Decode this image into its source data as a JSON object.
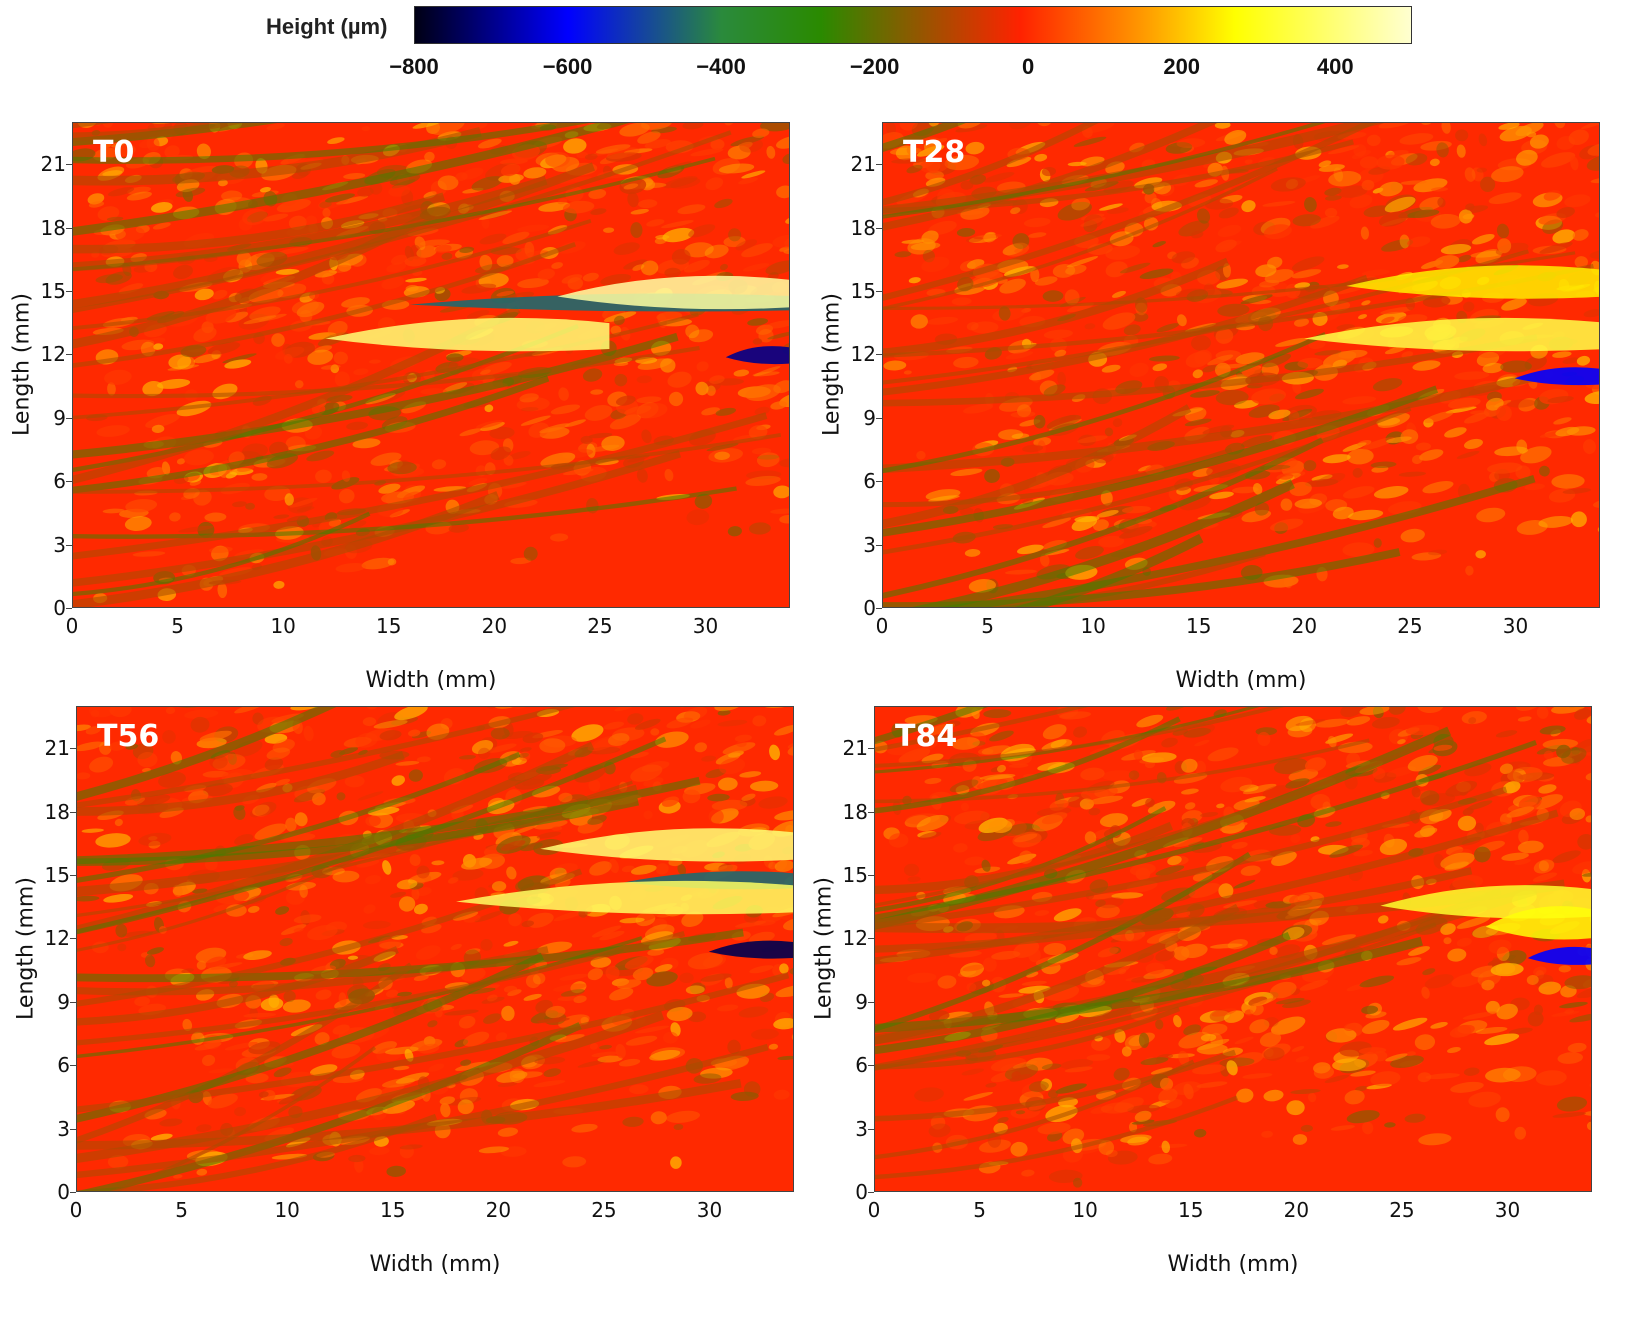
{
  "colorbar": {
    "label": "Height  (µm)",
    "ticks": [
      "−800",
      "−600",
      "−400",
      "−200",
      "0",
      "200",
      "400"
    ],
    "tick_values": [
      -800,
      -600,
      -400,
      -200,
      0,
      200,
      400
    ],
    "range": [
      -800,
      500
    ],
    "stops": [
      {
        "value": -800,
        "color": "#000014"
      },
      {
        "value": -600,
        "color": "#0000ff"
      },
      {
        "value": -400,
        "color": "#2a8a3c"
      },
      {
        "value": -270,
        "color": "#2a8a00"
      },
      {
        "value": -10,
        "color": "#ff2200"
      },
      {
        "value": 150,
        "color": "#ff9900"
      },
      {
        "value": 270,
        "color": "#ffff00"
      },
      {
        "value": 500,
        "color": "#ffffd0"
      }
    ]
  },
  "chart_data": [
    {
      "type": "heatmap",
      "title": "T0",
      "xlabel": "Width (mm)",
      "ylabel": "Length (mm)",
      "xlim": [
        0,
        34
      ],
      "ylim": [
        0,
        23
      ],
      "xticks": [
        "0",
        "5",
        "10",
        "15",
        "20",
        "25",
        "30"
      ],
      "yticks": [
        "0",
        "3",
        "6",
        "9",
        "12",
        "15",
        "18",
        "21"
      ],
      "colorbar_label": "Height (µm)",
      "features": [
        {
          "kind": "low",
          "description": "deep depression",
          "x_range": [
            31,
            34
          ],
          "y_center": 12,
          "value": -700
        },
        {
          "kind": "low",
          "description": "groove",
          "x_range": [
            16,
            34
          ],
          "y_center": 14.5,
          "value": -450
        },
        {
          "kind": "high",
          "description": "ridge",
          "x_range": [
            23,
            34
          ],
          "y_center": 15,
          "value": 450
        },
        {
          "kind": "high",
          "description": "ridge",
          "x_range": [
            12,
            25
          ],
          "y_center": 13,
          "value": 400
        }
      ]
    },
    {
      "type": "heatmap",
      "title": "T28",
      "xlabel": "Width (mm)",
      "ylabel": "Length (mm)",
      "xlim": [
        0,
        34
      ],
      "ylim": [
        0,
        23
      ],
      "xticks": [
        "0",
        "5",
        "10",
        "15",
        "20",
        "25",
        "30"
      ],
      "yticks": [
        "0",
        "3",
        "6",
        "9",
        "12",
        "15",
        "18",
        "21"
      ],
      "colorbar_label": "Height (µm)",
      "features": [
        {
          "kind": "low",
          "description": "depression",
          "x_range": [
            30,
            34
          ],
          "y_center": 11,
          "value": -600
        },
        {
          "kind": "high",
          "description": "ridge",
          "x_range": [
            20,
            34
          ],
          "y_center": 13,
          "value": 350
        },
        {
          "kind": "high",
          "description": "ridge",
          "x_range": [
            22,
            34
          ],
          "y_center": 15.5,
          "value": 250
        }
      ]
    },
    {
      "type": "heatmap",
      "title": "T56",
      "xlabel": "Width (mm)",
      "ylabel": "Length (mm)",
      "xlim": [
        0,
        34
      ],
      "ylim": [
        0,
        23
      ],
      "xticks": [
        "0",
        "5",
        "10",
        "15",
        "20",
        "25",
        "30"
      ],
      "yticks": [
        "0",
        "3",
        "6",
        "9",
        "12",
        "15",
        "18",
        "21"
      ],
      "colorbar_label": "Height (µm)",
      "features": [
        {
          "kind": "low",
          "description": "deep depression",
          "x_range": [
            30,
            34
          ],
          "y_center": 11.5,
          "value": -750
        },
        {
          "kind": "low",
          "description": "groove",
          "x_range": [
            26,
            34
          ],
          "y_center": 14.8,
          "value": -450
        },
        {
          "kind": "high",
          "description": "ridge",
          "x_range": [
            22,
            34
          ],
          "y_center": 16.5,
          "value": 400
        },
        {
          "kind": "high",
          "description": "ridge",
          "x_range": [
            18,
            34
          ],
          "y_center": 14,
          "value": 380
        }
      ]
    },
    {
      "type": "heatmap",
      "title": "T84",
      "xlabel": "Width (mm)",
      "ylabel": "Length (mm)",
      "xlim": [
        0,
        34
      ],
      "ylim": [
        0,
        23
      ],
      "xticks": [
        "0",
        "5",
        "10",
        "15",
        "20",
        "25",
        "30"
      ],
      "yticks": [
        "0",
        "3",
        "6",
        "9",
        "12",
        "15",
        "18",
        "21"
      ],
      "colorbar_label": "Height (µm)",
      "features": [
        {
          "kind": "low",
          "description": "depression",
          "x_range": [
            31,
            34
          ],
          "y_center": 11.2,
          "value": -600
        },
        {
          "kind": "high",
          "description": "ridge",
          "x_range": [
            24,
            34
          ],
          "y_center": 13.8,
          "value": 320
        },
        {
          "kind": "high",
          "description": "ridge",
          "x_range": [
            29,
            34
          ],
          "y_center": 12.8,
          "value": 280
        }
      ]
    }
  ]
}
